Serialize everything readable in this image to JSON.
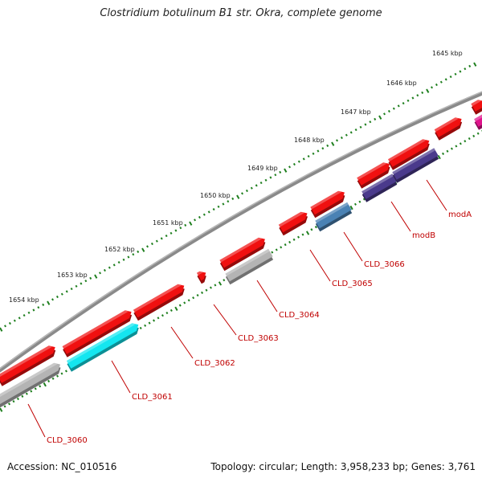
{
  "title": "Clostridium botulinum B1 str. Okra, complete genome",
  "footer": {
    "accession": "Accession: NC_010516",
    "topology": "Topology: circular; Length: 3,958,233 bp; Genes: 3,761"
  },
  "scale_labels": [
    "1645 kbp",
    "1646 kbp",
    "1647 kbp",
    "1648 kbp",
    "1649 kbp",
    "1650 kbp",
    "1651 kbp",
    "1652 kbp",
    "1653 kbp",
    "1654 kbp"
  ],
  "gene_labels": [
    "modA",
    "modB",
    "CLD_3066",
    "CLD_3065",
    "CLD_3064",
    "CLD_3063",
    "CLD_3062",
    "CLD_3061",
    "CLD_3060"
  ],
  "colors": {
    "backbone": "#8a8a8a",
    "tick": "#1e7f1e",
    "label": "#c00000",
    "cds_red": "#f01010",
    "grey": "#b4b4b4",
    "cyan": "#14e6f0",
    "steelblue": "#4a82b4",
    "purple": "#4a3a8c",
    "magenta": "#e0148c"
  }
}
